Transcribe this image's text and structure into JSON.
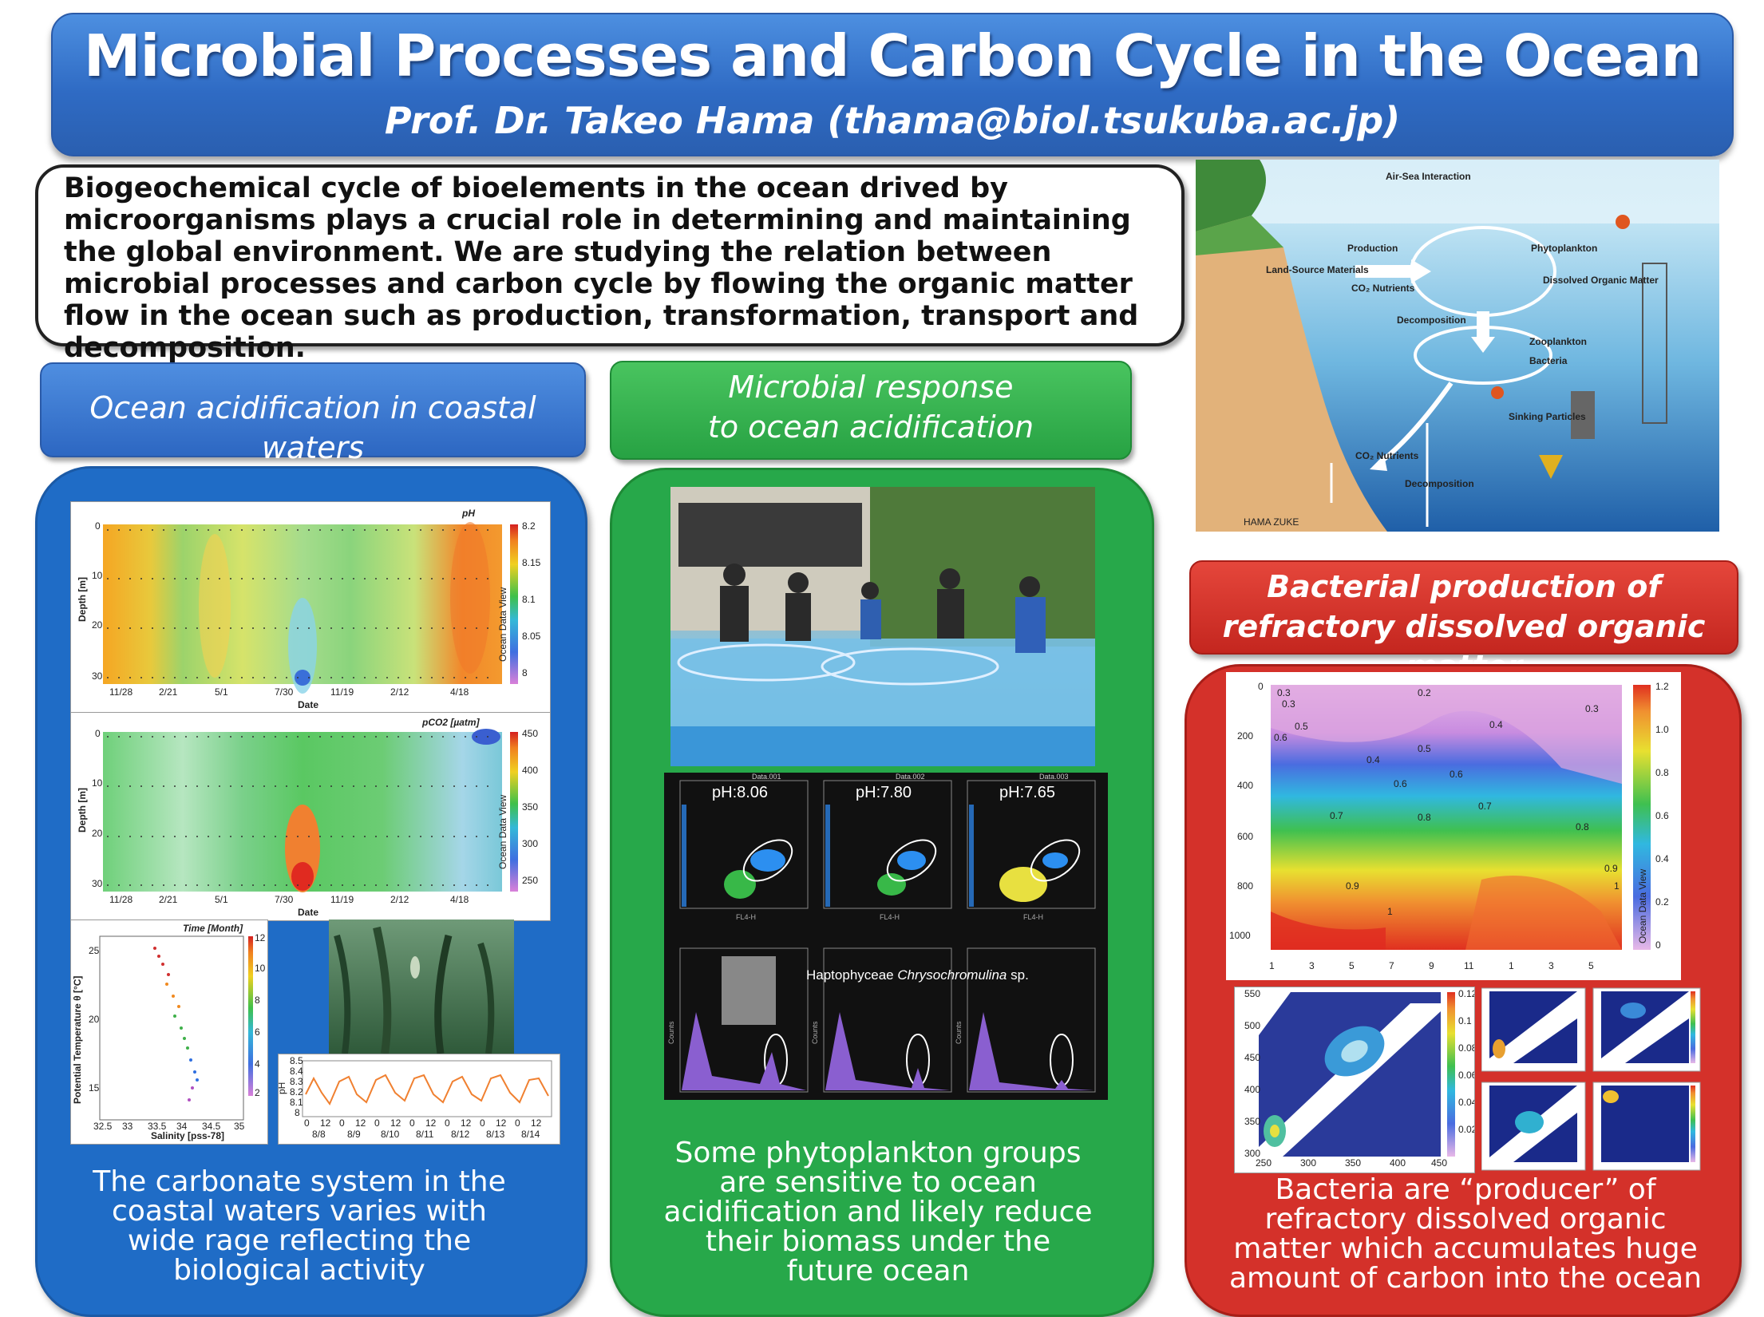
{
  "header": {
    "title": "Microbial Processes and Carbon Cycle in the Ocean",
    "author": "Prof. Dr. Takeo Hama (thama@biol.tsukuba.ac.jp)"
  },
  "intro": {
    "text": "Biogeochemical cycle of bioelements in the ocean drived by microorganisms plays a crucial role in determining  and maintaining the global environment. We are studying the relation between microbial processes and carbon cycle by flowing the organic matter flow in the ocean such as production, transformation, transport and decomposition."
  },
  "diagram": {
    "labels": {
      "air_sea": "Air-Sea Interaction",
      "production": "Production",
      "phytoplankton": "Phytoplankton",
      "land_source": "Land-Source Materials",
      "co2_nutrients_top": "CO₂ Nutrients",
      "dom": "Dissolved Organic Matter",
      "decomposition_top": "Decomposition",
      "zooplankton": "Zooplankton",
      "bacteria": "Bacteria",
      "sinking": "Sinking Particles",
      "co2_nutrients_bottom": "CO₂ Nutrients",
      "decomposition_bottom": "Decomposition",
      "credit": "HAMA ZUKE"
    }
  },
  "sections": {
    "acidification": {
      "header": "Ocean acidification in coastal waters",
      "caption": "The carbonate system in the coastal waters varies with wide rage reflecting the biological activity",
      "ph_plot": {
        "title": "pH",
        "ylabel": "Depth [m]",
        "xlabel": "Date",
        "yticks": [
          "0",
          "10",
          "20",
          "30"
        ],
        "xticks": [
          "11/28",
          "2/21",
          "5/1",
          "7/30",
          "11/19",
          "2/12",
          "4/18"
        ],
        "colorbar": [
          "8.2",
          "8.15",
          "8.1",
          "8.05",
          "8"
        ],
        "watermark": "Ocean Data View"
      },
      "pco2_plot": {
        "title": "pCO2 [µatm]",
        "ylabel": "Depth [m]",
        "xlabel": "Date",
        "yticks": [
          "0",
          "10",
          "20",
          "30"
        ],
        "xticks": [
          "11/28",
          "2/21",
          "5/1",
          "7/30",
          "11/19",
          "2/12",
          "4/18"
        ],
        "colorbar": [
          "450",
          "400",
          "350",
          "300",
          "250"
        ],
        "watermark": "Ocean Data View"
      },
      "ts_plot": {
        "title": "Time [Month]",
        "ylabel": "Potential Temperature θ [°C]",
        "xlabel": "Salinity [pss-78]",
        "yticks": [
          "25",
          "20",
          "15"
        ],
        "xticks": [
          "32.5",
          "33",
          "33.5",
          "34",
          "34.5",
          "35"
        ],
        "colorbar": [
          "12",
          "10",
          "8",
          "6",
          "4",
          "2"
        ]
      },
      "ph_series": {
        "ylabel": "pH",
        "yticks": [
          "8.5",
          "8.4",
          "8.3",
          "8.2",
          "8.1",
          "8"
        ],
        "xticks_hours": [
          "0",
          "12",
          "0",
          "12",
          "0",
          "12",
          "0",
          "12",
          "0",
          "12",
          "0",
          "12",
          "0",
          "12"
        ],
        "xticks_dates": [
          "8/8",
          "8/9",
          "8/10",
          "8/11",
          "8/12",
          "8/13",
          "8/14"
        ]
      }
    },
    "microbial": {
      "header_line1": "Microbial response",
      "header_line2": "to ocean acidification",
      "caption": "Some phytoplankton groups are sensitive to ocean acidification and likely reduce their biomass under the future ocean",
      "facs": {
        "panels": [
          {
            "label": "pH:8.06",
            "file": "Data.001"
          },
          {
            "label": "pH:7.80",
            "file": "Data.002"
          },
          {
            "label": "pH:7.65",
            "file": "Data.003"
          }
        ],
        "species_prefix": "Haptophyceae",
        "species_name": "Chrysochromulina",
        "species_suffix": "sp.",
        "x_axis": "FL4-H",
        "y_axis": "Counts"
      }
    },
    "refractory": {
      "header": "Bacterial production of refractory dissolved organic matter",
      "caption": "Bacteria are “producer” of refractory dissolved organic matter which accumulates huge amount of carbon into the ocean",
      "contour": {
        "yticks": [
          "0",
          "200",
          "400",
          "600",
          "800",
          "1000"
        ],
        "xticks": [
          "1",
          "3",
          "5",
          "7",
          "9",
          "11",
          "1",
          "3",
          "5"
        ],
        "colorbar": [
          "1.2",
          "1.0",
          "0.8",
          "0.6",
          "0.4",
          "0.2",
          "0"
        ],
        "watermark": "Ocean Data View",
        "contour_labels": [
          "0.3",
          "0.3",
          "0.2",
          "0.4",
          "0.3",
          "0.6",
          "0.5",
          "0.5",
          "0.4",
          "0.6",
          "0.6",
          "0.7",
          "0.7",
          "0.8",
          "0.8",
          "0.9",
          "0.9",
          "1",
          "1"
        ]
      },
      "eem_plot": {
        "yticks": [
          "550",
          "500",
          "450",
          "400",
          "350",
          "300"
        ],
        "xticks": [
          "250",
          "300",
          "350",
          "400",
          "450"
        ],
        "colorbar": [
          "0.12",
          "0.1",
          "0.08",
          "0.06",
          "0.04",
          "0.02"
        ]
      }
    }
  },
  "colors": {
    "blue": "#1f6cc6",
    "green": "#27a84a",
    "red": "#d4312a",
    "title_blue": "#2f6bc4"
  }
}
